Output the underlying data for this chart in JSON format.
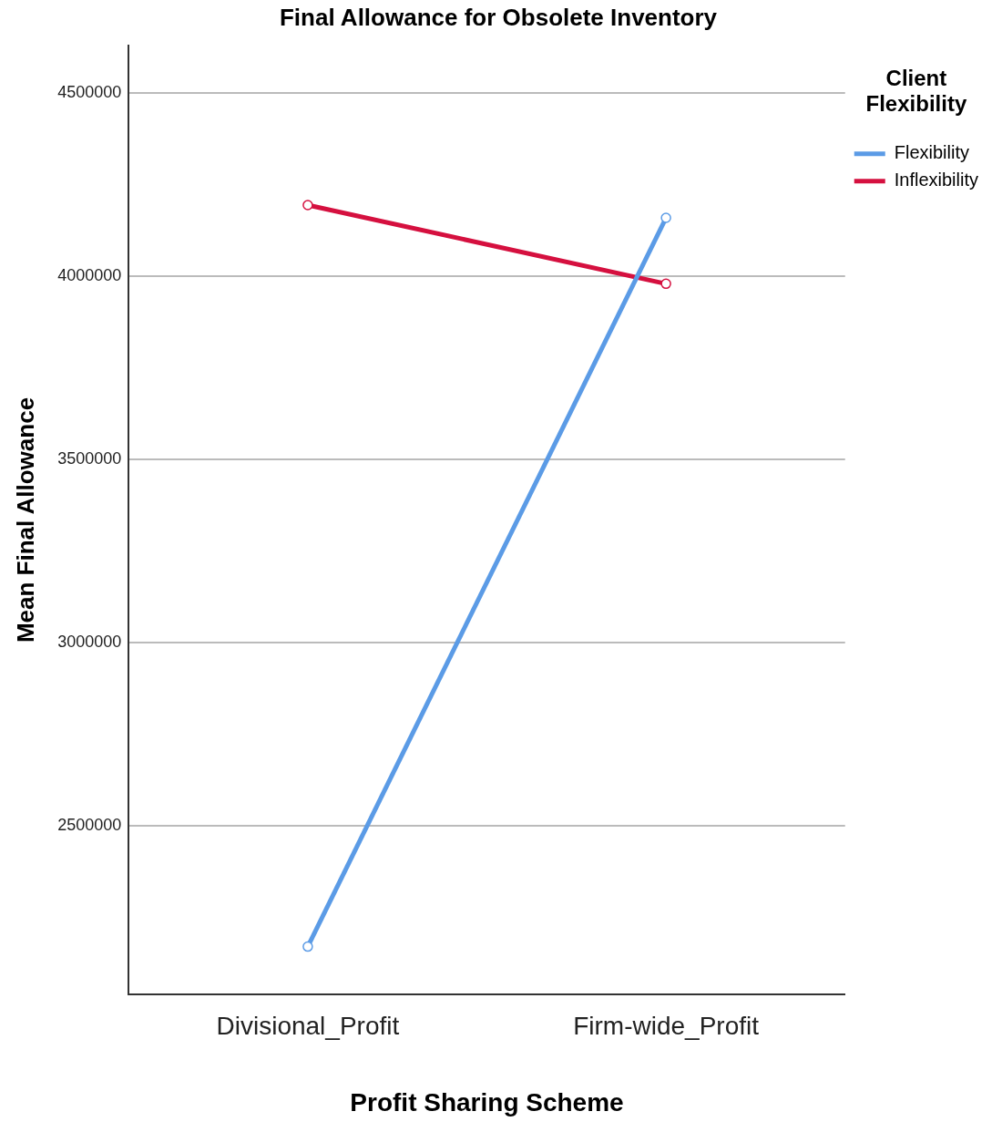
{
  "chart_data": {
    "type": "line",
    "title": "Final Allowance for Obsolete Inventory",
    "xlabel": "Profit Sharing Scheme",
    "ylabel": "Mean Final Allowance",
    "legend_title": "Client Flexibility",
    "categories": [
      "Divisional_Profit",
      "Firm-wide_Profit"
    ],
    "series": [
      {
        "name": "Flexibility",
        "color": "#5b9be6",
        "values": [
          2170000,
          4160000
        ]
      },
      {
        "name": "Inflexibility",
        "color": "#d5103f",
        "values": [
          4195000,
          3980000
        ]
      }
    ],
    "ylim": [
      2040000,
      4630000
    ],
    "yticks": [
      2500000,
      3000000,
      3500000,
      4000000,
      4500000
    ],
    "grid": "y",
    "legend": "right",
    "marker": "circle",
    "line_style": "solid"
  }
}
